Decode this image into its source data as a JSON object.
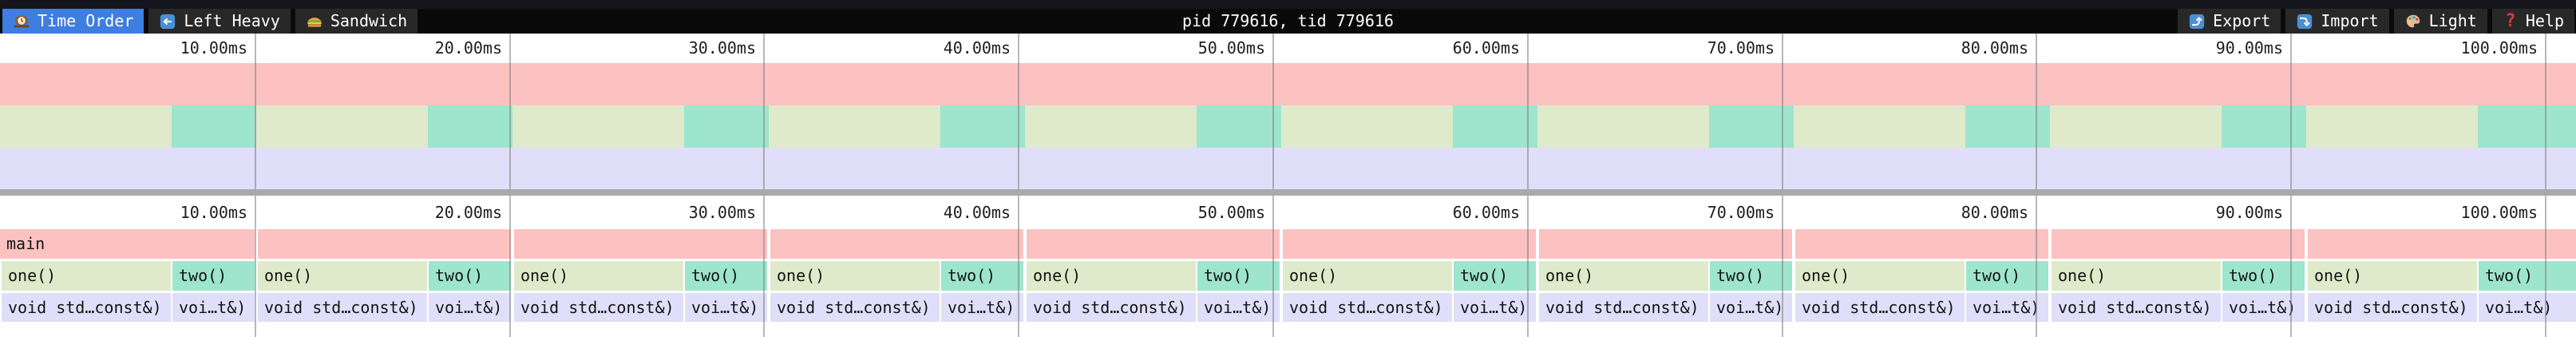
{
  "navbar": {
    "title": "pid 779616, tid 779616",
    "tabs": [
      {
        "id": "time-order",
        "label": "Time Order",
        "icon": "clock",
        "active": true
      },
      {
        "id": "left-heavy",
        "label": "Left Heavy",
        "icon": "left-arrow",
        "active": false
      },
      {
        "id": "sandwich",
        "label": "Sandwich",
        "icon": "sandwich",
        "active": false
      }
    ],
    "actions": [
      {
        "id": "export",
        "label": "Export",
        "icon": "export"
      },
      {
        "id": "import",
        "label": "Import",
        "icon": "import"
      },
      {
        "id": "theme",
        "label": "Light",
        "icon": "palette"
      },
      {
        "id": "help",
        "label": "Help",
        "icon": "help"
      }
    ]
  },
  "timeline": {
    "tick_labels": [
      "10.00ms",
      "20.00ms",
      "30.00ms",
      "40.00ms",
      "50.00ms",
      "60.00ms",
      "70.00ms",
      "80.00ms",
      "90.00ms",
      "100.00ms"
    ]
  },
  "flamegraph": {
    "root_label": "main",
    "one_label": "one()",
    "two_label": "two()",
    "void_wide_label": "void std…const&)",
    "void_narrow_label": "voi…t&)",
    "group_count": 10
  },
  "chart_data": {
    "type": "flamegraph",
    "x_unit": "ms",
    "x_ticks_ms": [
      10,
      20,
      30,
      40,
      50,
      60,
      70,
      80,
      90,
      100
    ],
    "visible_range_ms": [
      0,
      101.3
    ],
    "root_frame": {
      "name": "main",
      "start_ms": 0,
      "end_ms": 101.3
    },
    "repeating_cycle_ms": 10.1,
    "cycle_children": [
      {
        "name": "one()",
        "approx_duration_ms": 6.7,
        "child": "void std…const&)"
      },
      {
        "name": "two()",
        "approx_duration_ms": 3.4,
        "child": "voi…t&)"
      }
    ],
    "cycles_visible": 10
  },
  "colors": {
    "active_tab_blue": "#3e7ee0",
    "navbar_bg": "#0a0a0a",
    "tab_bg": "#282828",
    "frame_pink": "#fbc2c1",
    "frame_green": "#dfeacb",
    "frame_teal": "#9de5cd",
    "frame_lavender": "#e1def9",
    "gridline_gray": "#7d7d7d",
    "separator_gray": "#a9a9a9"
  }
}
